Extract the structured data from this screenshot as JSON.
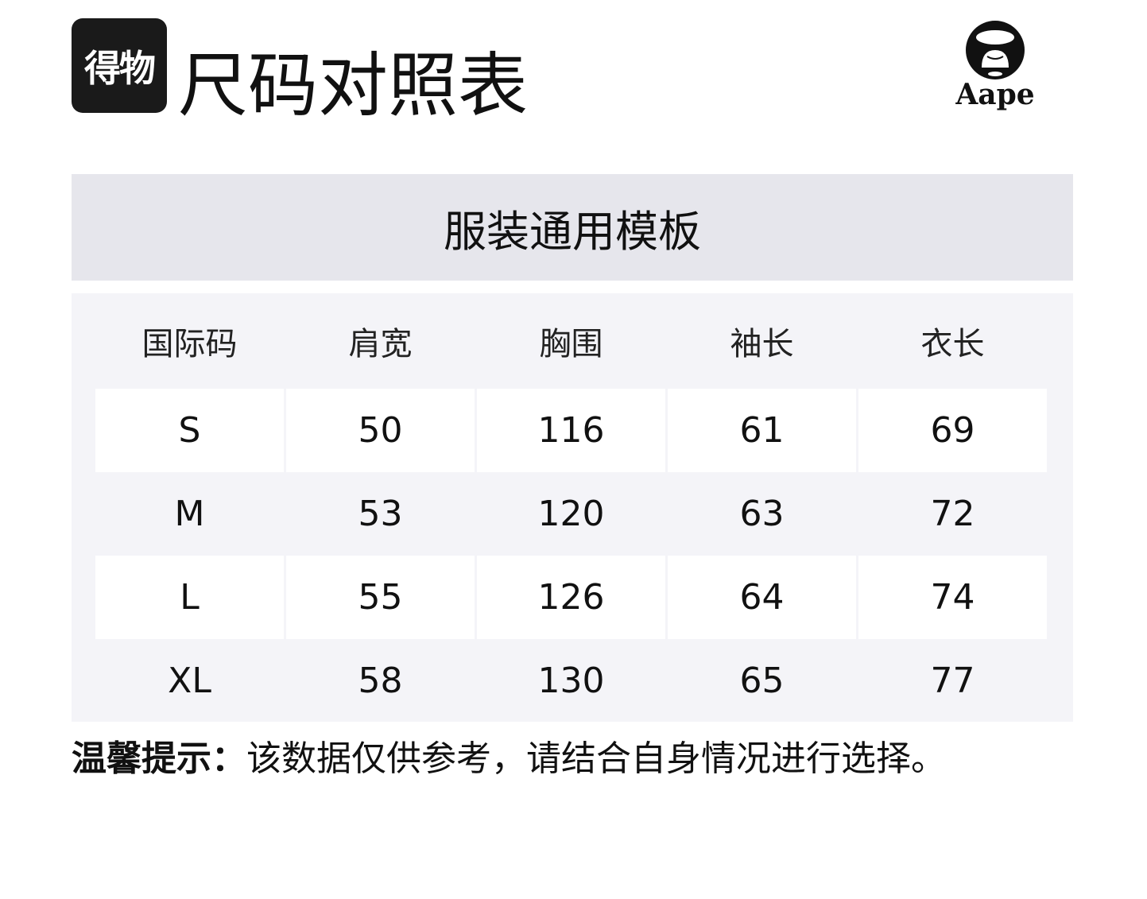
{
  "header": {
    "logo_text": "得物",
    "title": "尺码对照表",
    "brand_logo_text": "Aape"
  },
  "template_title": "服装通用模板",
  "table": {
    "columns": [
      "国际码",
      "肩宽",
      "胸围",
      "袖长",
      "衣长"
    ],
    "rows": [
      [
        "S",
        "50",
        "116",
        "61",
        "69"
      ],
      [
        "M",
        "53",
        "120",
        "63",
        "72"
      ],
      [
        "L",
        "55",
        "126",
        "64",
        "74"
      ],
      [
        "XL",
        "58",
        "130",
        "65",
        "77"
      ]
    ]
  },
  "note": {
    "label": "温馨提示：",
    "text": "该数据仅供参考，请结合自身情况进行选择。"
  }
}
